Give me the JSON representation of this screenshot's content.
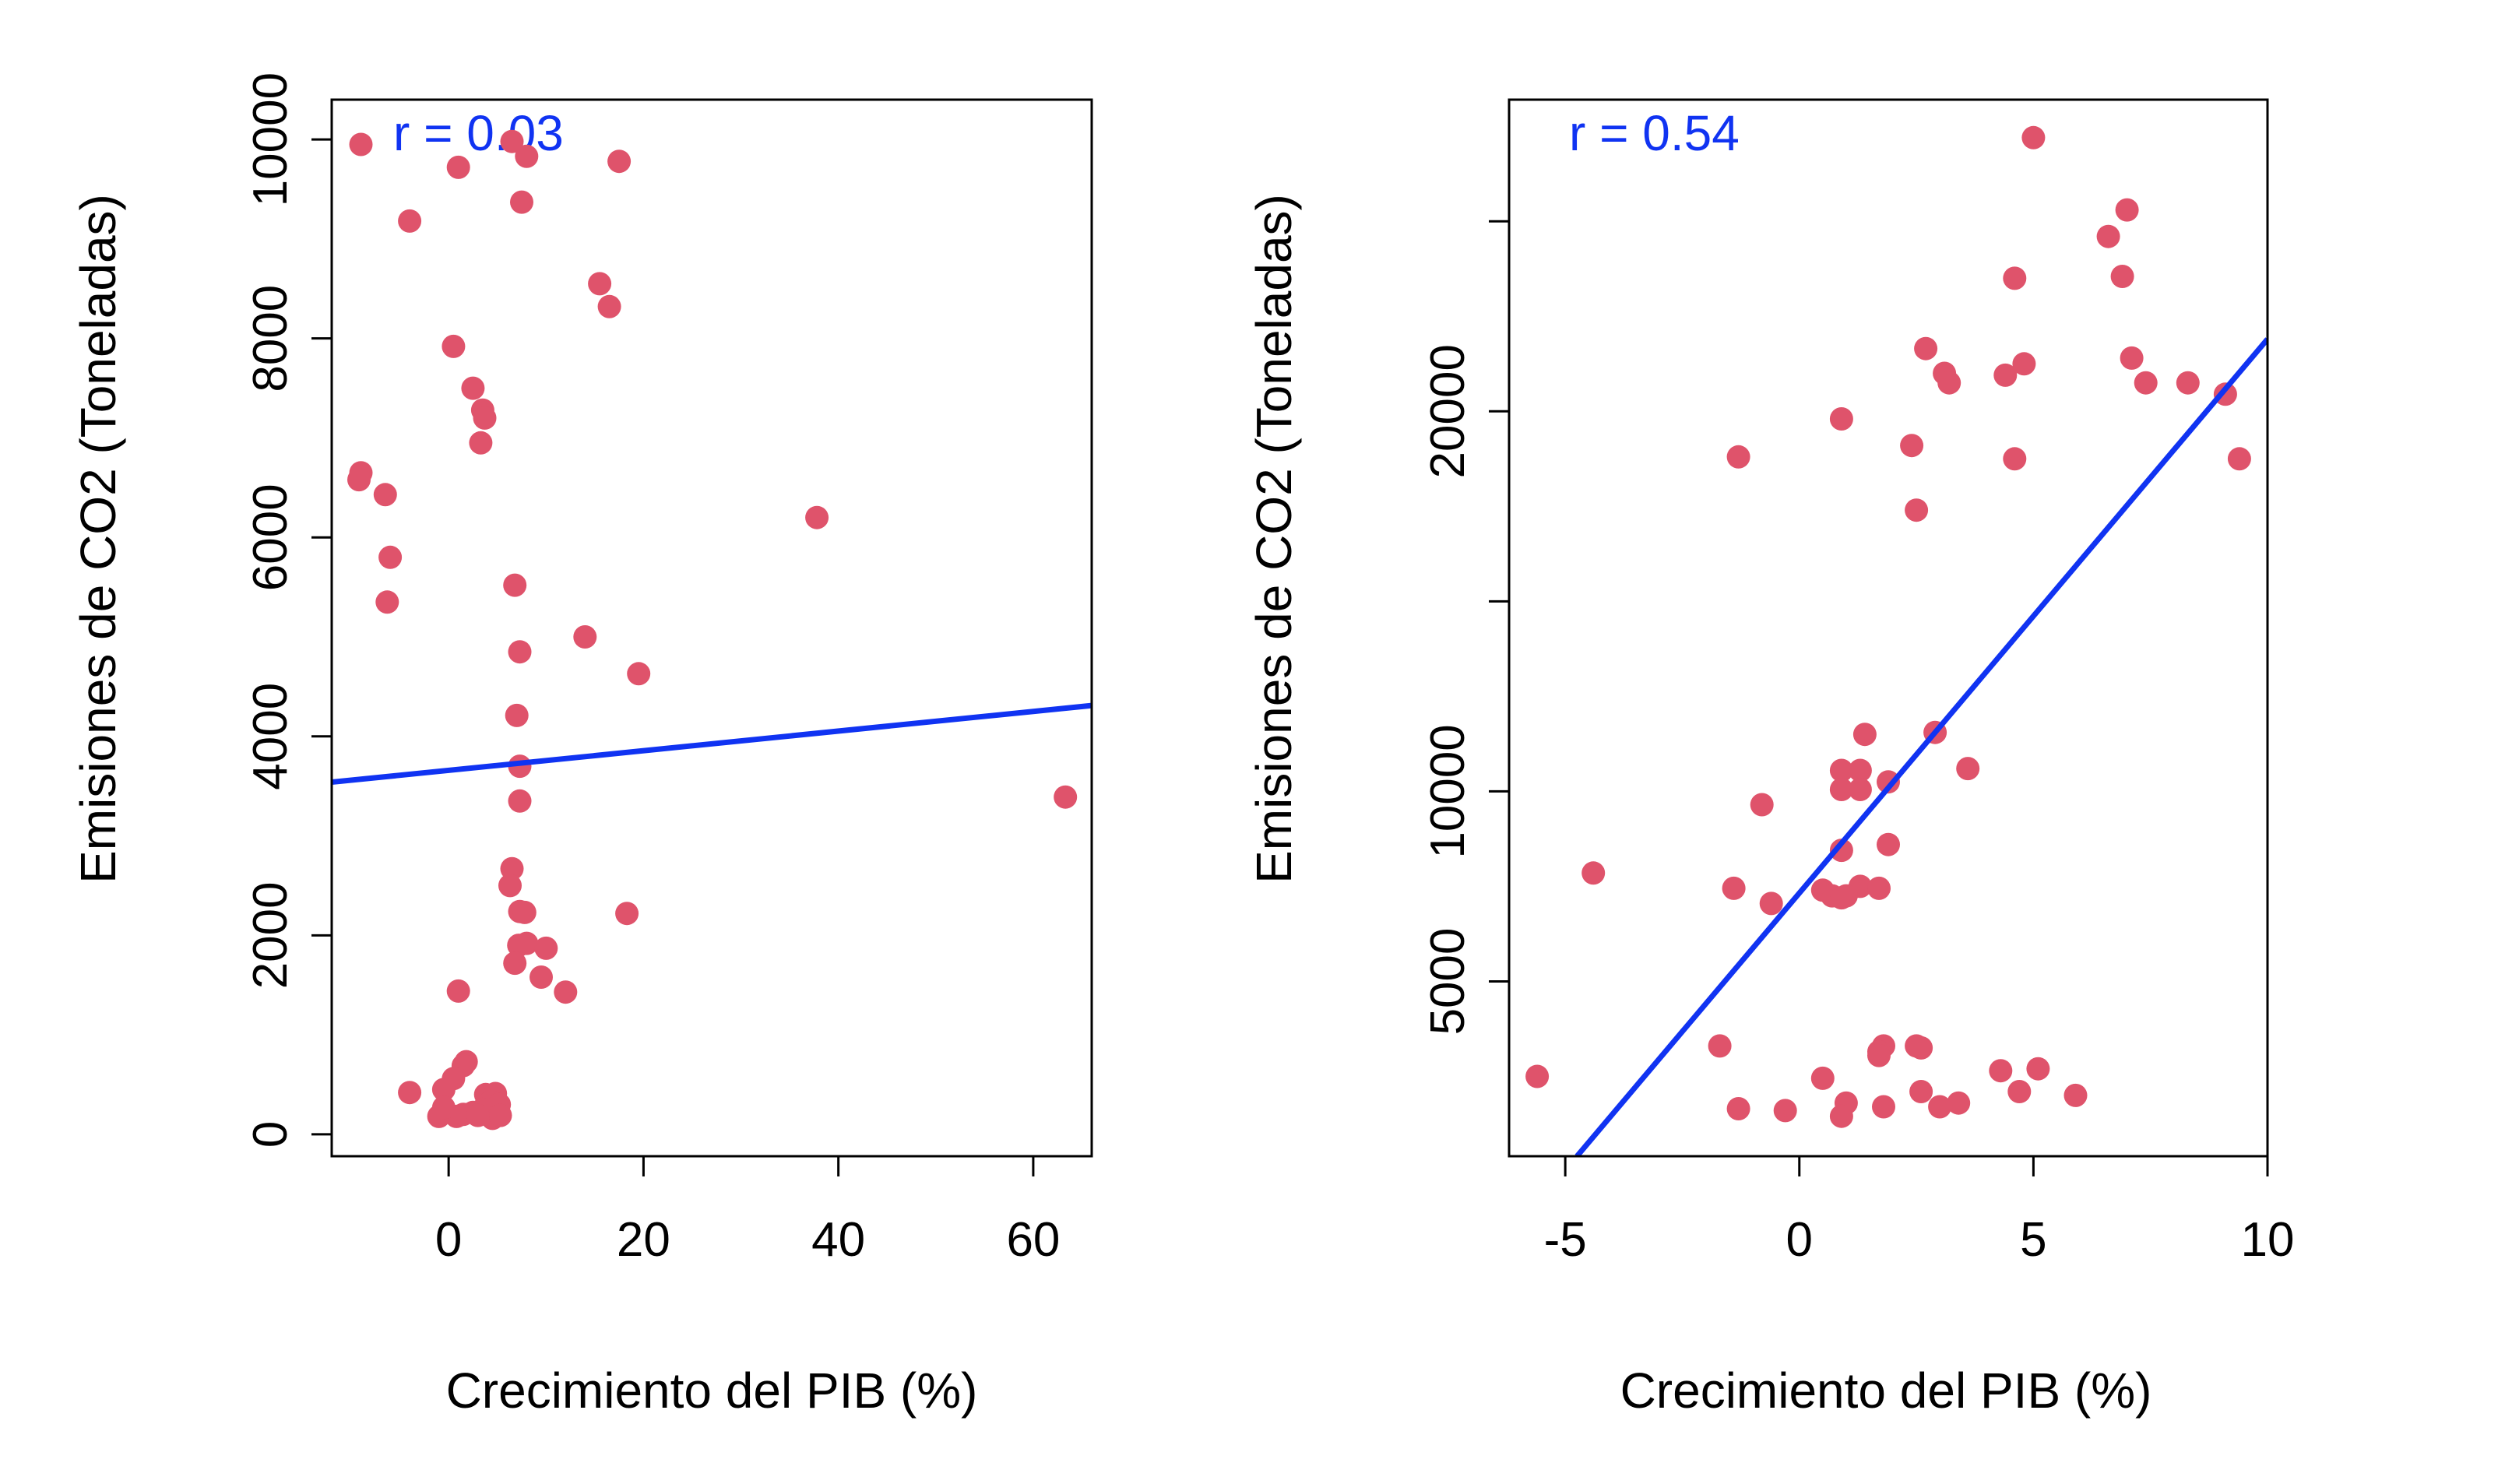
{
  "colors": {
    "points": "#DF536B",
    "fit_line": "#1033F2",
    "axes": "#000000",
    "background": "#FFFFFF"
  },
  "chart_data": [
    {
      "type": "scatter",
      "annotation": "r = 0.03",
      "xlabel": "Crecimiento del PIB (%)",
      "ylabel": "Emisiones de CO2 (Toneladas)",
      "xlim": [
        -12,
        66
      ],
      "ylim": [
        -220,
        10400
      ],
      "x_ticks": [
        0,
        20,
        40,
        60
      ],
      "x_tick_labels": [
        "0",
        "20",
        "40",
        "60"
      ],
      "y_ticks": [
        0,
        2000,
        4000,
        6000,
        8000,
        10000
      ],
      "y_tick_labels": [
        "0",
        "2000",
        "4000",
        "6000",
        "8000",
        "10000"
      ],
      "fit_line": {
        "x": [
          -12,
          66
        ],
        "y": [
          3540,
          4310
        ]
      },
      "points": [
        {
          "x": -9.0,
          "y": 9950
        },
        {
          "x": 1.0,
          "y": 9720
        },
        {
          "x": 6.5,
          "y": 9980
        },
        {
          "x": 8.0,
          "y": 9830
        },
        {
          "x": 17.5,
          "y": 9780
        },
        {
          "x": -4.0,
          "y": 9180
        },
        {
          "x": 7.5,
          "y": 9370
        },
        {
          "x": 15.5,
          "y": 8550
        },
        {
          "x": 16.5,
          "y": 8320
        },
        {
          "x": 0.5,
          "y": 7920
        },
        {
          "x": 2.5,
          "y": 7500
        },
        {
          "x": 3.5,
          "y": 7280
        },
        {
          "x": 3.7,
          "y": 7200
        },
        {
          "x": 3.3,
          "y": 6950
        },
        {
          "x": -9.0,
          "y": 6650
        },
        {
          "x": -9.2,
          "y": 6580
        },
        {
          "x": -6.5,
          "y": 6430
        },
        {
          "x": 37.8,
          "y": 6200
        },
        {
          "x": -6.0,
          "y": 5800
        },
        {
          "x": -6.3,
          "y": 5350
        },
        {
          "x": 6.8,
          "y": 5520
        },
        {
          "x": 14.0,
          "y": 5000
        },
        {
          "x": 7.3,
          "y": 4850
        },
        {
          "x": 19.5,
          "y": 4630
        },
        {
          "x": 7.0,
          "y": 4210
        },
        {
          "x": 7.3,
          "y": 3700
        },
        {
          "x": 63.3,
          "y": 3390
        },
        {
          "x": 7.3,
          "y": 3350
        },
        {
          "x": 6.5,
          "y": 2670
        },
        {
          "x": 6.3,
          "y": 2500
        },
        {
          "x": 7.3,
          "y": 2240
        },
        {
          "x": 7.8,
          "y": 2230
        },
        {
          "x": 18.3,
          "y": 2220
        },
        {
          "x": 7.2,
          "y": 1900
        },
        {
          "x": 8.0,
          "y": 1920
        },
        {
          "x": 10.0,
          "y": 1870
        },
        {
          "x": 6.8,
          "y": 1720
        },
        {
          "x": 9.5,
          "y": 1580
        },
        {
          "x": 12.0,
          "y": 1430
        },
        {
          "x": 1.0,
          "y": 1440
        },
        {
          "x": 1.8,
          "y": 730
        },
        {
          "x": 1.5,
          "y": 690
        },
        {
          "x": 0.5,
          "y": 560
        },
        {
          "x": -0.5,
          "y": 450
        },
        {
          "x": -4.0,
          "y": 420
        },
        {
          "x": 3.8,
          "y": 400
        },
        {
          "x": 4.8,
          "y": 410
        },
        {
          "x": 4.3,
          "y": 330
        },
        {
          "x": 5.2,
          "y": 300
        },
        {
          "x": 3.5,
          "y": 250
        },
        {
          "x": 2.5,
          "y": 220
        },
        {
          "x": 0.8,
          "y": 180
        },
        {
          "x": 1.5,
          "y": 200
        },
        {
          "x": -1.0,
          "y": 180
        },
        {
          "x": -0.5,
          "y": 270
        },
        {
          "x": 4.5,
          "y": 160
        },
        {
          "x": 5.3,
          "y": 190
        },
        {
          "x": 3.0,
          "y": 190
        }
      ]
    },
    {
      "type": "scatter",
      "annotation": "r = 0.54",
      "xlabel": "Crecimiento del PIB (%)",
      "ylabel": "Emisiones de CO2 (Toneladas)",
      "xlim": [
        -6.2,
        10
      ],
      "ylim": [
        400,
        28200
      ],
      "x_ticks": [
        -5,
        0,
        5,
        10
      ],
      "x_tick_labels": [
        "-5",
        "0",
        "5",
        "10"
      ],
      "y_ticks": [
        5000,
        10000,
        15000,
        20000,
        25000
      ],
      "y_tick_labels": [
        "5000",
        "10000",
        "",
        "20000",
        ""
      ],
      "fit_line": {
        "x": [
          -4.75,
          10
        ],
        "y": [
          400,
          21900
        ]
      },
      "points": [
        {
          "x": 5.0,
          "y": 27200
        },
        {
          "x": 7.0,
          "y": 25300
        },
        {
          "x": 6.6,
          "y": 24600
        },
        {
          "x": 4.6,
          "y": 23500
        },
        {
          "x": 6.9,
          "y": 23550
        },
        {
          "x": 2.7,
          "y": 21650
        },
        {
          "x": 7.1,
          "y": 21400
        },
        {
          "x": 4.8,
          "y": 21250
        },
        {
          "x": 3.1,
          "y": 21000
        },
        {
          "x": 3.2,
          "y": 20750
        },
        {
          "x": 4.4,
          "y": 20950
        },
        {
          "x": 7.4,
          "y": 20750
        },
        {
          "x": 8.3,
          "y": 20750
        },
        {
          "x": 9.1,
          "y": 20450
        },
        {
          "x": 0.9,
          "y": 19800
        },
        {
          "x": 2.4,
          "y": 19100
        },
        {
          "x": -1.3,
          "y": 18800
        },
        {
          "x": 4.6,
          "y": 18750
        },
        {
          "x": 9.4,
          "y": 18750
        },
        {
          "x": 2.5,
          "y": 17400
        },
        {
          "x": 1.4,
          "y": 11500
        },
        {
          "x": 2.9,
          "y": 11550
        },
        {
          "x": 3.6,
          "y": 10600
        },
        {
          "x": 0.9,
          "y": 10550
        },
        {
          "x": 1.3,
          "y": 10550
        },
        {
          "x": 1.9,
          "y": 10250
        },
        {
          "x": 0.9,
          "y": 10050
        },
        {
          "x": 1.3,
          "y": 10050
        },
        {
          "x": -0.8,
          "y": 9650
        },
        {
          "x": 0.9,
          "y": 8450
        },
        {
          "x": 1.9,
          "y": 8600
        },
        {
          "x": -4.4,
          "y": 7850
        },
        {
          "x": -1.4,
          "y": 7450
        },
        {
          "x": 1.3,
          "y": 7500
        },
        {
          "x": 1.7,
          "y": 7450
        },
        {
          "x": 0.5,
          "y": 7400
        },
        {
          "x": 0.7,
          "y": 7250
        },
        {
          "x": 0.9,
          "y": 7200
        },
        {
          "x": 1.0,
          "y": 7250
        },
        {
          "x": -0.6,
          "y": 7050
        },
        {
          "x": -1.7,
          "y": 3300
        },
        {
          "x": 1.8,
          "y": 3300
        },
        {
          "x": 2.5,
          "y": 3300
        },
        {
          "x": 1.7,
          "y": 3150
        },
        {
          "x": 2.6,
          "y": 3250
        },
        {
          "x": 1.7,
          "y": 3050
        },
        {
          "x": 4.3,
          "y": 2650
        },
        {
          "x": 5.1,
          "y": 2700
        },
        {
          "x": -5.6,
          "y": 2500
        },
        {
          "x": 0.5,
          "y": 2450
        },
        {
          "x": 2.6,
          "y": 2100
        },
        {
          "x": 4.7,
          "y": 2100
        },
        {
          "x": 5.9,
          "y": 2000
        },
        {
          "x": 1.0,
          "y": 1800
        },
        {
          "x": 3.0,
          "y": 1700
        },
        {
          "x": 3.4,
          "y": 1800
        },
        {
          "x": -1.3,
          "y": 1650
        },
        {
          "x": -0.3,
          "y": 1600
        },
        {
          "x": 1.8,
          "y": 1700
        },
        {
          "x": 0.9,
          "y": 1450
        }
      ]
    }
  ]
}
